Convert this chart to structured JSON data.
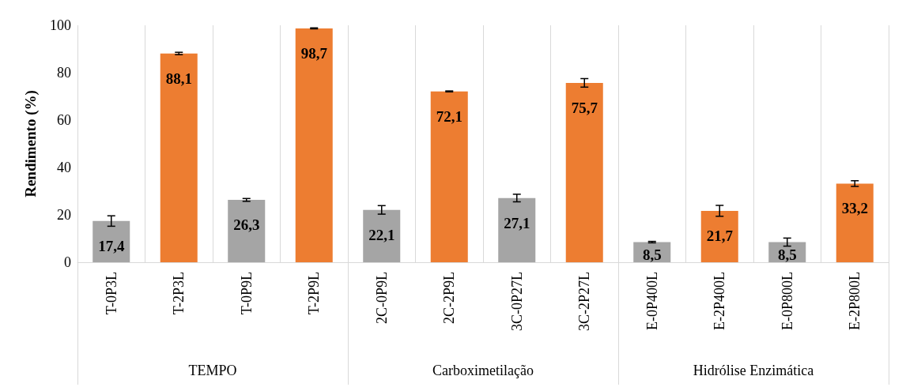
{
  "chart_data": {
    "type": "bar",
    "ylabel": "Rendimento (%)",
    "categories": [
      "T-0P3L",
      "T-2P3L",
      "T-0P9L",
      "T-2P9L",
      "2C-0P9L",
      "2C-2P9L",
      "3C-0P27L",
      "3C-2P27L",
      "E-0P400L",
      "E-2P400L",
      "E-0P800L",
      "E-2P800L"
    ],
    "values": [
      17.4,
      88.1,
      26.3,
      98.7,
      22.1,
      72.1,
      27.1,
      75.7,
      8.5,
      21.7,
      8.5,
      33.2
    ],
    "colors": [
      "#a5a5a5",
      "#ed7d31",
      "#a5a5a5",
      "#ed7d31",
      "#a5a5a5",
      "#ed7d31",
      "#a5a5a5",
      "#ed7d31",
      "#a5a5a5",
      "#ed7d31",
      "#a5a5a5",
      "#ed7d31"
    ],
    "errors": [
      2.2,
      0.5,
      0.6,
      0.2,
      1.8,
      0.2,
      1.6,
      1.8,
      0.3,
      2.3,
      1.7,
      1.2
    ],
    "ylim": [
      0,
      100
    ],
    "yticks": [
      0,
      20,
      40,
      60,
      80,
      100
    ],
    "grid": "x",
    "value_labels": [
      "17,4",
      "88,1",
      "26,3",
      "98,7",
      "22,1",
      "72,1",
      "27,1",
      "75,7",
      "8,5",
      "21,7",
      "8,5",
      "33,2"
    ],
    "annotations": [
      "TEMPO",
      "Carboximetilação",
      "Hidrólise Enzimática"
    ]
  }
}
